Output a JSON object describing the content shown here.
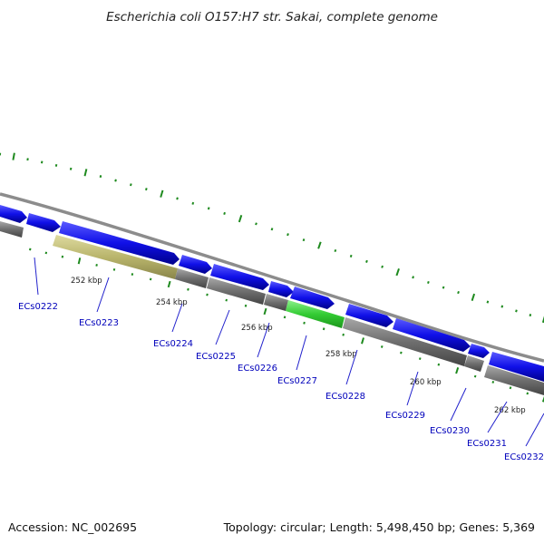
{
  "title": "Escherichia coli O157:H7 str. Sakai, complete genome",
  "footer": {
    "accession": "Accession: NC_002695",
    "summary": "Topology: circular; Length: 5,498,450 bp; Genes: 5,369"
  },
  "colors": {
    "forward_gene": "#1010e8",
    "reverse_gene": "#6f6f6f",
    "highlight_reverse_gene": "#b9b56c",
    "highlight_gene": "#34cc34",
    "backbone": "#8c8c8c",
    "tick": "#1e8a1e",
    "label_text": "#0000bb",
    "leader_line": "#2020cc"
  },
  "kbp_ticks": [
    "252 kbp",
    "254 kbp",
    "256 kbp",
    "258 kbp",
    "260 kbp",
    "262 kbp"
  ],
  "genes": [
    {
      "label": "ECs0222"
    },
    {
      "label": "ECs0223"
    },
    {
      "label": "ECs0224"
    },
    {
      "label": "ECs0225"
    },
    {
      "label": "ECs0226"
    },
    {
      "label": "ECs0227"
    },
    {
      "label": "ECs0228"
    },
    {
      "label": "ECs0229"
    },
    {
      "label": "ECs0230"
    },
    {
      "label": "ECs0231"
    },
    {
      "label": "ECs0232"
    }
  ]
}
